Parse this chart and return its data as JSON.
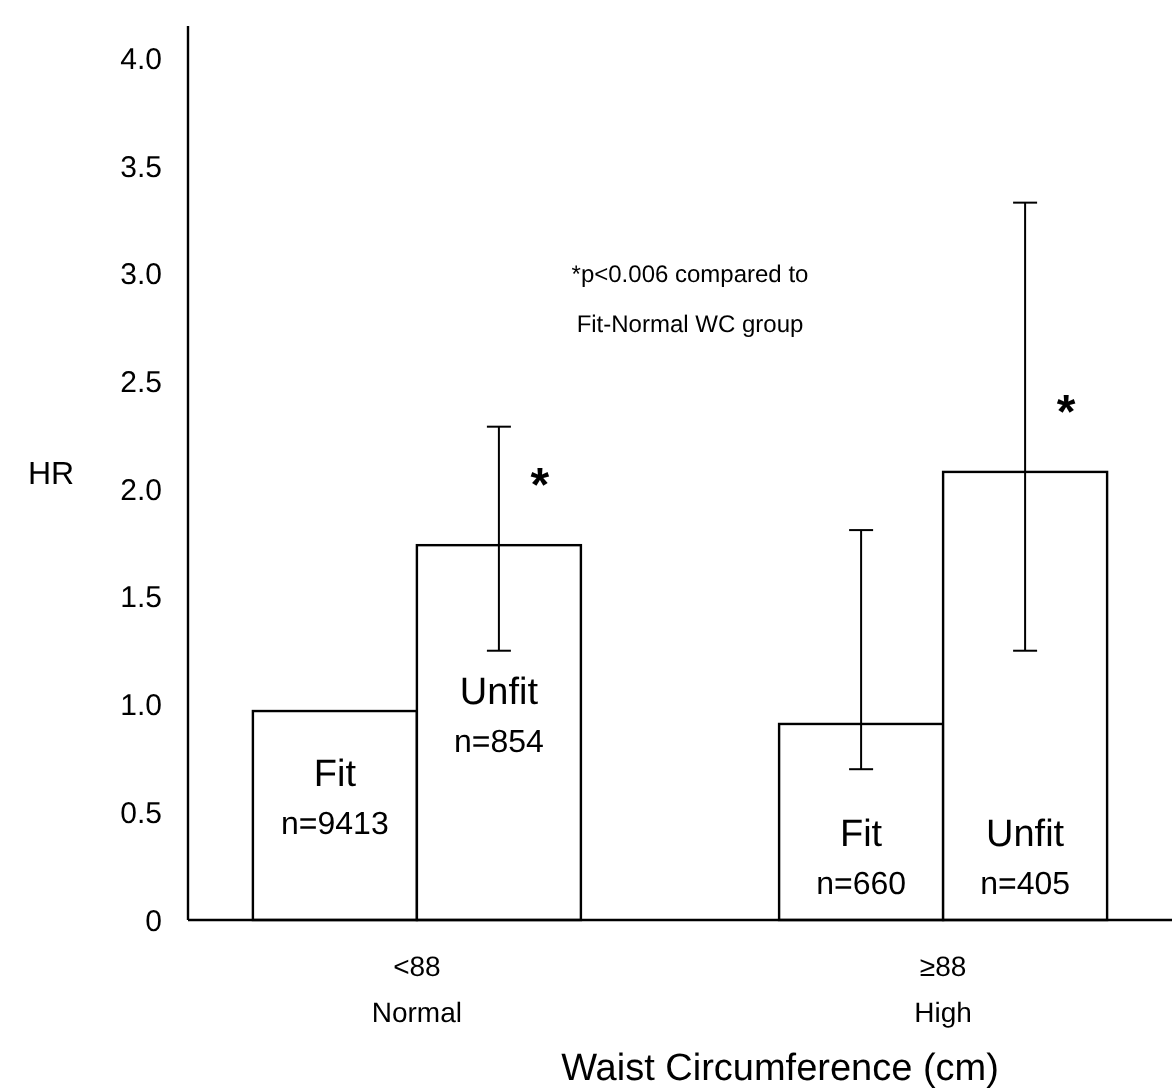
{
  "chart_data": {
    "type": "bar",
    "xlabel": "Waist Circumference (cm)",
    "ylabel": "HR",
    "categories": [
      "<88\nNormal",
      "≥88\nHigh"
    ],
    "series": [
      {
        "name": "Fit",
        "color": "#ffffff",
        "values": [
          0.97,
          0.91
        ],
        "errors": [
          null,
          [
            0.7,
            1.81
          ]
        ]
      },
      {
        "name": "Unfit",
        "color": "#ffffff",
        "values": [
          1.74,
          2.08
        ],
        "errors": [
          [
            1.25,
            2.29
          ],
          [
            1.25,
            3.33
          ]
        ]
      }
    ],
    "ylim": [
      0,
      4.15
    ],
    "yticks": [
      0,
      0.5,
      {
        "value": 1,
        "label": "1.0"
      },
      1.5,
      {
        "value": 2,
        "label": "2.0"
      },
      2.5,
      {
        "value": 3,
        "label": "3.0"
      },
      3.5,
      {
        "value": 4,
        "label": "4.0"
      }
    ],
    "grid": false,
    "annotations": [
      "*p<0.006 compared to\nFit-Normal WC group",
      "*",
      "*",
      {
        "text": "n=9413",
        "x": "<88\nNormal",
        "y": 0.4
      },
      {
        "text": "n=854",
        "x": "<88\nNormal",
        "y": 0.78
      },
      {
        "text": "n=660",
        "x": "≥88\nHigh",
        "y": 0.12
      },
      {
        "text": "n=405",
        "x": "≥88\nHigh",
        "y": 0.12
      }
    ]
  }
}
